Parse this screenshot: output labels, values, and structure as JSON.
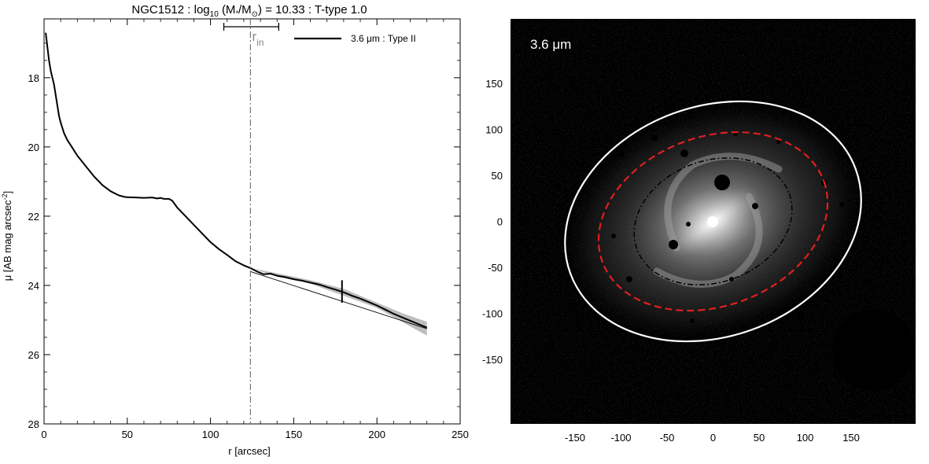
{
  "chart_data": [
    {
      "type": "line",
      "title_parts": {
        "galaxy": "NGC1512",
        "log": "log",
        "log_sub": "10",
        "mass_open": "(M",
        "mass_star": "*",
        "mass_slash": "/M",
        "mass_sun": "⊙",
        "mass_close": ")",
        "mass_value": "= 10.33",
        "ttype": ": T-type 1.0"
      },
      "xlabel": "r [arcsec]",
      "ylabel_parts": {
        "main": "μ [AB mag arcsec",
        "sup": "-2",
        "close": "]"
      },
      "xlim": [
        0,
        250
      ],
      "ylim_top_to_bottom": [
        16.3,
        28.0
      ],
      "x_ticks": [
        0,
        50,
        100,
        150,
        200,
        250
      ],
      "y_ticks": [
        18,
        20,
        22,
        24,
        26,
        28
      ],
      "legend": {
        "label": "3.6 μm : Type II",
        "position": "top-right"
      },
      "series": [
        {
          "name": "3.6 μm : Type II",
          "x": [
            1,
            2,
            3,
            4,
            5,
            6,
            7,
            8,
            9,
            10,
            11,
            12,
            14,
            16,
            18,
            20,
            25,
            30,
            35,
            40,
            45,
            48,
            50,
            55,
            60,
            65,
            68,
            70,
            72,
            75,
            77,
            80,
            85,
            90,
            95,
            100,
            105,
            110,
            115,
            120,
            124,
            128,
            132,
            136,
            140,
            145,
            150,
            155,
            160,
            165,
            170,
            175,
            180,
            185,
            190,
            195,
            200,
            205,
            210,
            215,
            220,
            225,
            230
          ],
          "y": [
            16.7,
            17.1,
            17.5,
            17.8,
            18.0,
            18.2,
            18.5,
            18.8,
            19.1,
            19.3,
            19.45,
            19.6,
            19.8,
            19.95,
            20.1,
            20.25,
            20.55,
            20.85,
            21.1,
            21.28,
            21.4,
            21.44,
            21.45,
            21.46,
            21.47,
            21.46,
            21.49,
            21.47,
            21.5,
            21.5,
            21.55,
            21.75,
            22.0,
            22.25,
            22.5,
            22.75,
            22.95,
            23.12,
            23.3,
            23.42,
            23.5,
            23.6,
            23.68,
            23.66,
            23.72,
            23.76,
            23.82,
            23.86,
            23.92,
            23.97,
            24.05,
            24.12,
            24.2,
            24.3,
            24.38,
            24.48,
            24.58,
            24.7,
            24.82,
            24.92,
            25.02,
            25.12,
            25.22
          ]
        }
      ],
      "fit_line": {
        "x": [
          124,
          230
        ],
        "y": [
          23.6,
          25.25
        ]
      },
      "error_band": {
        "x": [
          124,
          140,
          160,
          180,
          200,
          215,
          230
        ],
        "lower": [
          23.5,
          23.65,
          23.85,
          24.1,
          24.5,
          24.8,
          25.05
        ],
        "upper": [
          23.5,
          23.75,
          23.95,
          24.3,
          24.65,
          25.05,
          25.45
        ]
      },
      "break_radius": 124,
      "r_in_bar": {
        "x_start": 108,
        "x_end": 141,
        "label": "r",
        "label_sub": "in"
      },
      "outer_marker": {
        "x": 179,
        "y_range": [
          23.85,
          24.5
        ]
      }
    },
    {
      "type": "image",
      "label": "3.6 μm",
      "xlim": [
        -220,
        220
      ],
      "ylim": [
        -220,
        220
      ],
      "x_ticks": [
        -150,
        -100,
        -50,
        0,
        50,
        100,
        150
      ],
      "x_tick_labels": [
        "-150",
        "-100",
        "-50",
        "0",
        "50",
        "100",
        "150"
      ],
      "y_ticks": [
        150,
        100,
        50,
        0,
        -50,
        -100,
        -150
      ],
      "y_tick_labels": [
        "150",
        "100",
        "50",
        "0",
        "-50",
        "-100",
        "-150"
      ],
      "ellipses": [
        {
          "style": "white-solid",
          "cx": 0,
          "cy": 0,
          "rx": 165,
          "ry": 125,
          "angle_deg": -20
        },
        {
          "style": "red-dashed",
          "cx": 0,
          "cy": 0,
          "rx": 128,
          "ry": 92,
          "angle_deg": -20
        },
        {
          "style": "black-dashdot",
          "cx": 0,
          "cy": 0,
          "rx": 88,
          "ry": 66,
          "angle_deg": -20
        }
      ],
      "colors": {
        "background": "#000000",
        "white_ellipse": "#ffffff",
        "red_ellipse": "#e02020",
        "black_ellipse": "#000000"
      }
    }
  ]
}
